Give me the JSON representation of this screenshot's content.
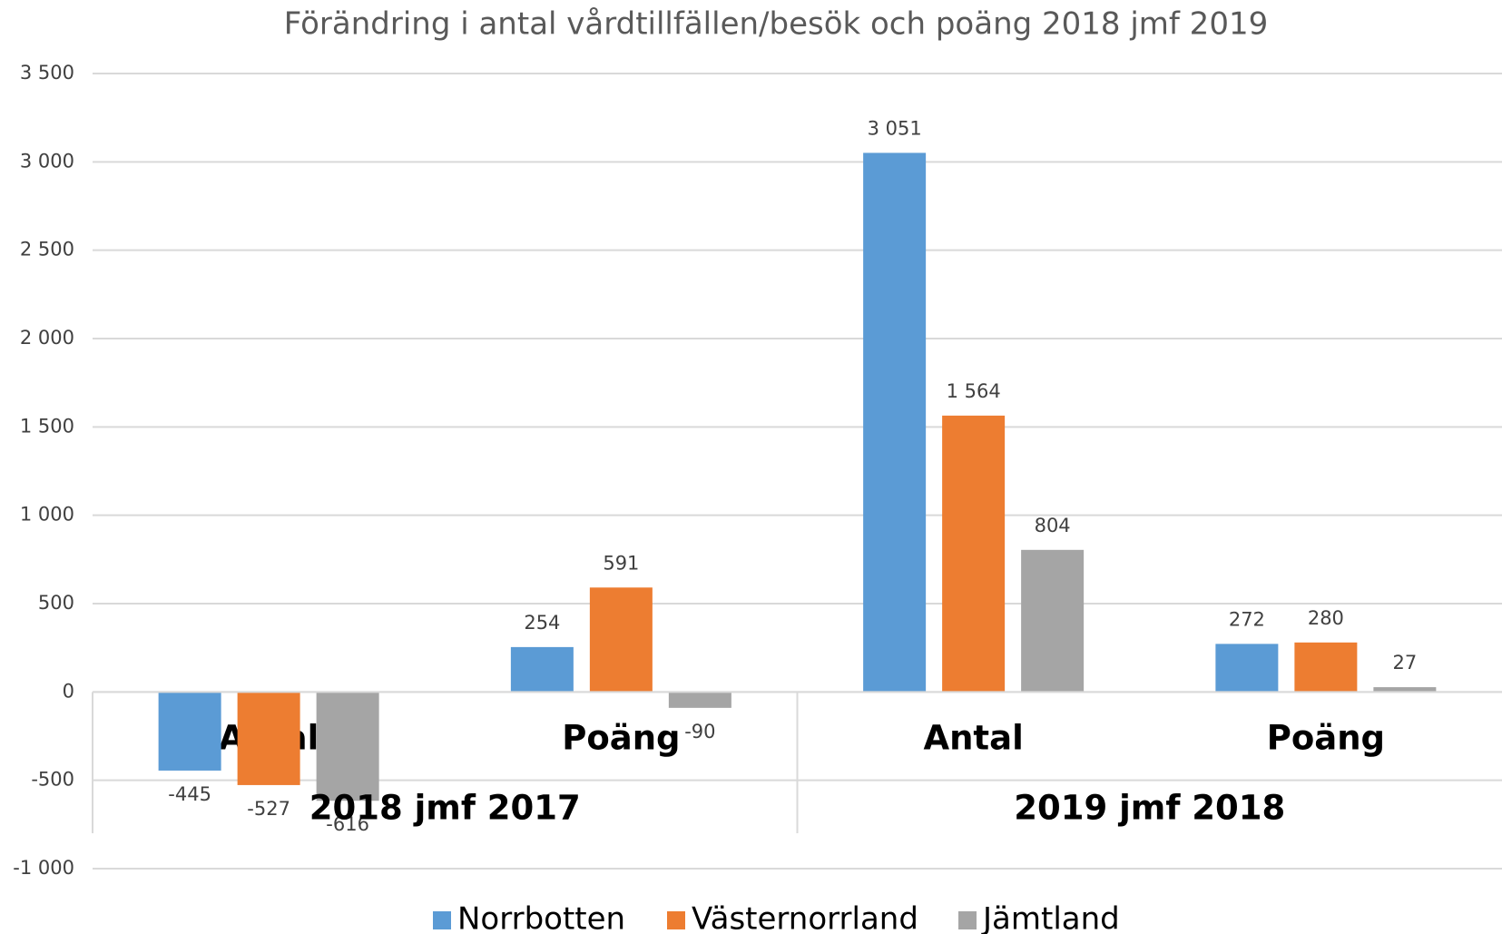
{
  "chart_data": {
    "type": "bar",
    "title": "Förändring i antal vårdtillfällen/besök och poäng 2018 jmf 2019",
    "categories": [
      "Antal",
      "Poäng",
      "Antal",
      "Poäng"
    ],
    "group_labels": [
      "2018 jmf 2017",
      "2019 jmf 2018"
    ],
    "series": [
      {
        "name": "Norrbotten",
        "color": "#5b9bd5",
        "values": [
          -445,
          254,
          3051,
          272
        ],
        "value_labels": [
          "-445",
          "254",
          "3 051",
          "272"
        ]
      },
      {
        "name": "Västernorrland",
        "color": "#ed7d31",
        "values": [
          -527,
          591,
          1564,
          280
        ],
        "value_labels": [
          "-527",
          "591",
          "1 564",
          "280"
        ]
      },
      {
        "name": "Jämtland",
        "color": "#a5a5a5",
        "values": [
          -616,
          -90,
          804,
          27
        ],
        "value_labels": [
          "-616",
          "-90",
          "804",
          "27"
        ]
      }
    ],
    "ylim": [
      -1000,
      3500
    ],
    "yticks": [
      {
        "value": -1000,
        "label": "-1 000"
      },
      -500,
      0,
      500,
      {
        "value": 1000,
        "label": "1 000"
      },
      {
        "value": 1500,
        "label": "1 500"
      },
      {
        "value": 2000,
        "label": "2 000"
      },
      {
        "value": 2500,
        "label": "2 500"
      },
      {
        "value": 3000,
        "label": "3 000"
      },
      {
        "value": 3500,
        "label": "3 500"
      }
    ],
    "grid": true,
    "legend": "bottom"
  }
}
